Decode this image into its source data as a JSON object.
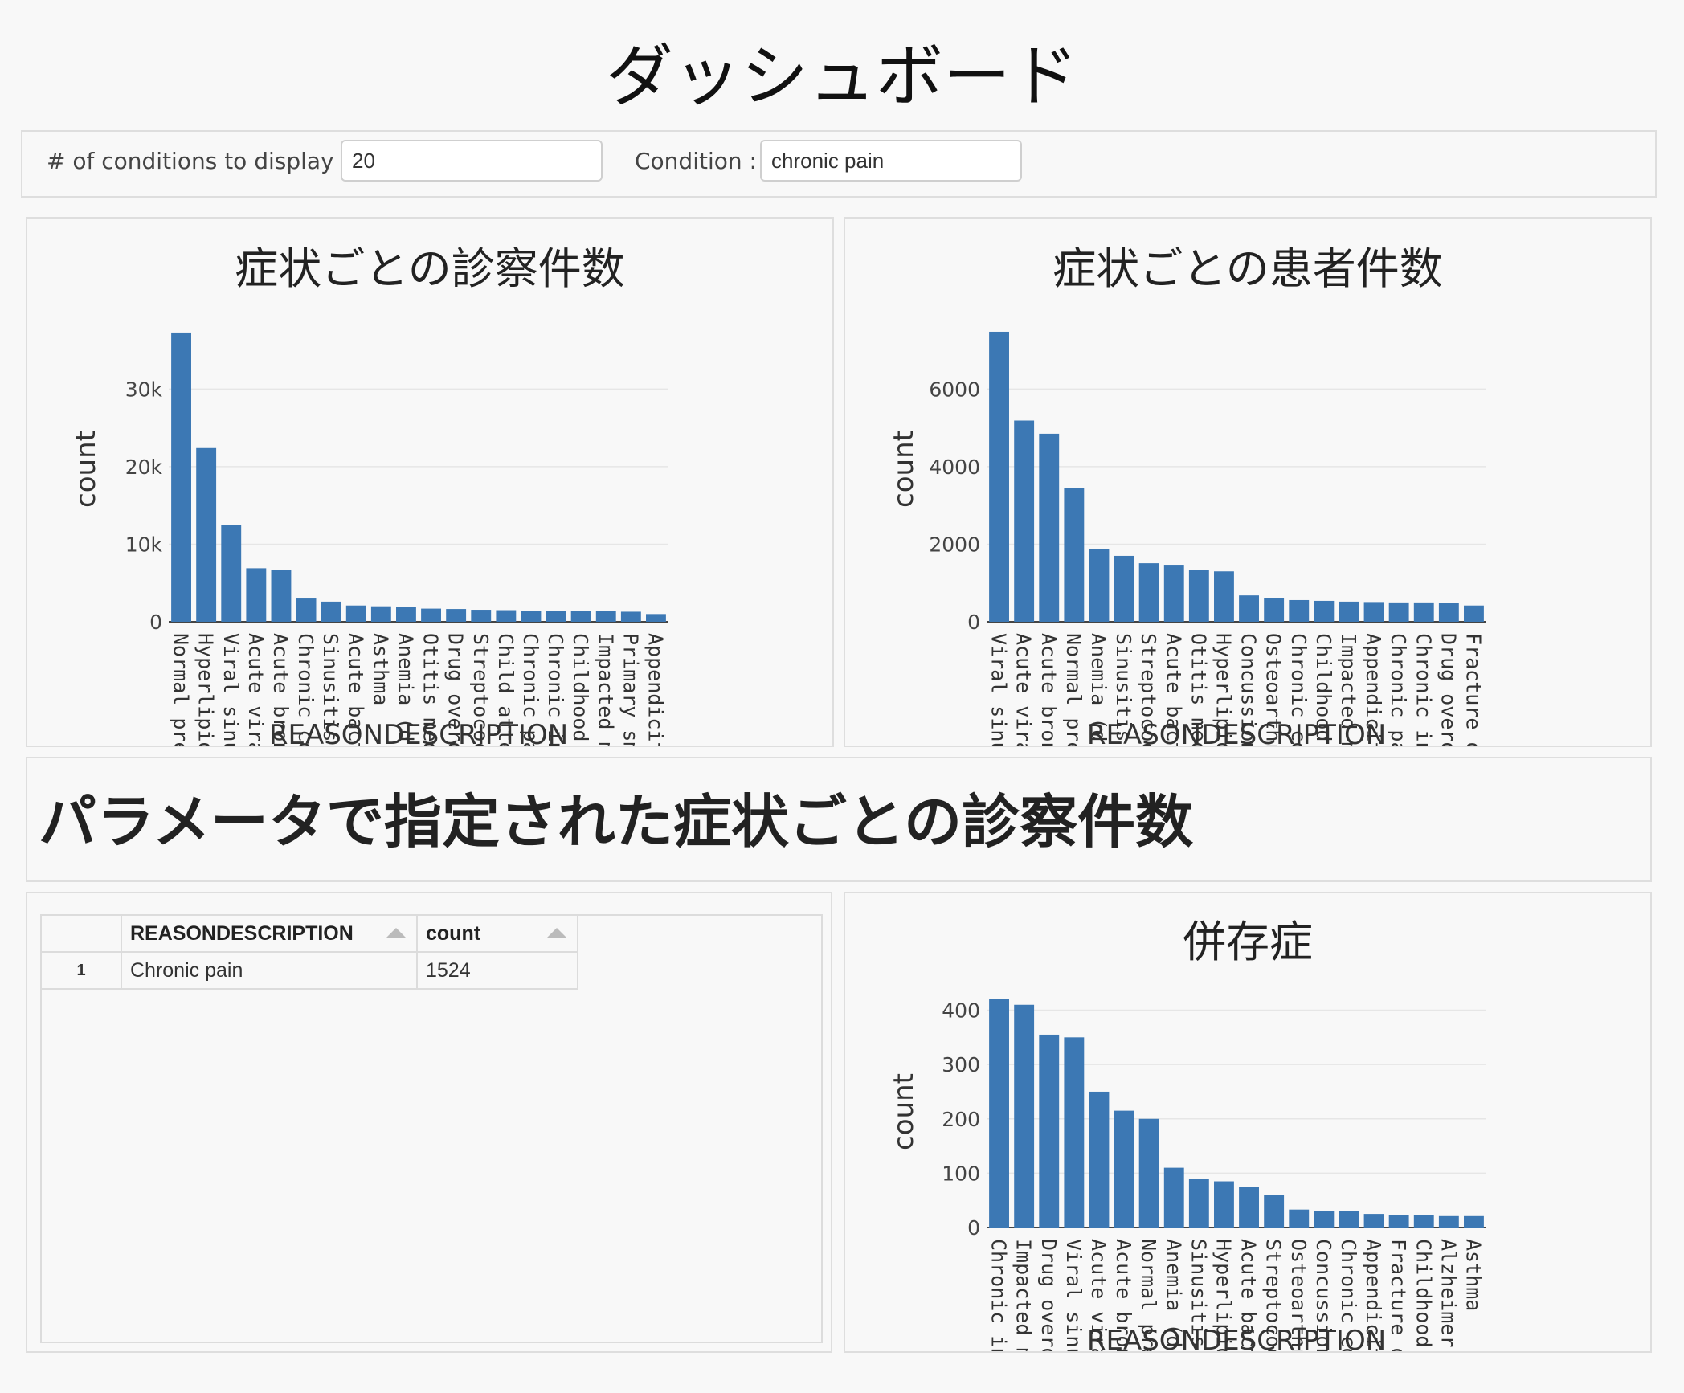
{
  "page_title": "ダッシュボード",
  "controls": {
    "count_label": "# of conditions to display :",
    "count_value": "20",
    "condition_label": "Condition :",
    "condition_value": "chronic pain"
  },
  "section_heading": "パラメータで指定された症状ごとの診察件数",
  "table": {
    "columns": [
      "REASONDESCRIPTION",
      "count"
    ],
    "rows": [
      {
        "index": "1",
        "reason": "Chronic pain",
        "count": "1524"
      }
    ]
  },
  "colors": {
    "bar": "#3c78b4",
    "grid": "#e6e6e6"
  },
  "chart_data": [
    {
      "type": "bar",
      "title": "症状ごとの診察件数",
      "xlabel": "REASONDESCRIPTION",
      "ylabel": "count",
      "ylim": [
        0,
        37500
      ],
      "yticks": [
        0,
        10000,
        20000,
        30000
      ],
      "ytick_labels": [
        "0",
        "10k",
        "20k",
        "30k"
      ],
      "categories": [
        "Normal preg",
        "Hyperlipider",
        "Viral sinusit",
        "Acute viral p",
        "Acute bronc",
        "Chronic co",
        "Sinusitis (c",
        "Acute bacte",
        "Asthma",
        "Anemia (d",
        "Otitis medi",
        "Drug overd",
        "Streptococ",
        "Child atten",
        "Chronic pai",
        "Chronic intr",
        "Childhood a",
        "Impacted m",
        "Primary sm",
        "Appendicitis"
      ],
      "values": [
        37300,
        22400,
        12500,
        6900,
        6700,
        3000,
        2600,
        2100,
        2000,
        1950,
        1700,
        1650,
        1550,
        1500,
        1450,
        1400,
        1400,
        1380,
        1300,
        1000
      ]
    },
    {
      "type": "bar",
      "title": "症状ごとの患者件数",
      "xlabel": "REASONDESCRIPTION",
      "ylabel": "count",
      "ylim": [
        0,
        7500
      ],
      "yticks": [
        0,
        2000,
        4000,
        6000
      ],
      "ytick_labels": [
        "0",
        "2000",
        "4000",
        "6000"
      ],
      "categories": [
        "Viral sinusit",
        "Acute viral p",
        "Acute bronc",
        "Normal preg",
        "Anemia (d",
        "Sinusitis (c",
        "Streptococ",
        "Acute bacte",
        "Otitis medi",
        "Hyperlipide",
        "Concussion",
        "Osteoarthri",
        "Chronic co",
        "Childhood a",
        "Impacted m",
        "Appendicitis",
        "Chronic pai",
        "Chronic intr",
        "Drug overd",
        "Fracture of"
      ],
      "values": [
        7480,
        5190,
        4850,
        3450,
        1880,
        1700,
        1510,
        1470,
        1330,
        1300,
        680,
        620,
        560,
        540,
        520,
        510,
        500,
        500,
        480,
        420
      ]
    },
    {
      "type": "bar",
      "title": "併存症",
      "xlabel": "REASONDESCRIPTION",
      "ylabel": "count",
      "ylim": [
        0,
        420
      ],
      "yticks": [
        0,
        100,
        200,
        300,
        400
      ],
      "ytick_labels": [
        "0",
        "100",
        "200",
        "300",
        "400"
      ],
      "categories": [
        "Chronic intr",
        "Impacted m",
        "Drug overd",
        "Viral sinusit",
        "Acute viral p",
        "Acute bronc",
        "Normal preg",
        "Anemia (d",
        "Sinusitis (c",
        "Hyperlipide",
        "Acute bacte",
        "Streptococ",
        "Osteoarthri",
        "Concussion",
        "Chronic co",
        "Appendicitis",
        "Fracture of",
        "Childhood a",
        "Alzheimer's",
        "Asthma"
      ],
      "values": [
        420,
        410,
        355,
        350,
        250,
        215,
        200,
        110,
        90,
        85,
        75,
        60,
        33,
        30,
        30,
        25,
        23,
        23,
        21,
        21
      ]
    }
  ]
}
